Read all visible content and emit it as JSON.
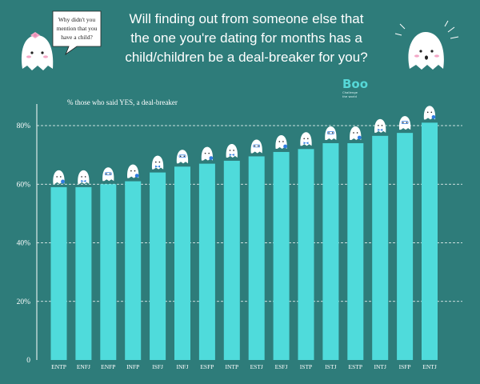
{
  "title_lines": [
    "Will finding out from someone else that",
    "the one you're dating for months has a",
    "child/children be a deal-breaker for you?"
  ],
  "speech_bubble_lines": [
    "Why didn't you",
    "mention that you",
    "have a child?"
  ],
  "brand": {
    "name": "Boo",
    "tagline_lines": [
      "Challenge",
      "the world"
    ]
  },
  "icons": {
    "mascot_left": "ghost-bow-icon",
    "mascot_right": "ghost-surprised-icon",
    "bar_mascot": "ghost-icon"
  },
  "colors": {
    "background": "#2e7c7a",
    "bar": "#4fdbdb",
    "gridline": "#ffffff",
    "ghost": "#ffffff",
    "accent": "#2f7de1",
    "bow": "#f4a7c6"
  },
  "chart_data": {
    "type": "bar",
    "subtitle": "% those who said YES, a deal-breaker",
    "categories": [
      "ENTP",
      "ENFJ",
      "ENFP",
      "INFP",
      "ISFJ",
      "INFJ",
      "ESFP",
      "INTP",
      "ESTJ",
      "ESFJ",
      "ISTP",
      "ISTJ",
      "ESTP",
      "INTJ",
      "ISFP",
      "ENTJ"
    ],
    "values": [
      59,
      59,
      60,
      61,
      64,
      66,
      67,
      68,
      69.5,
      71,
      72,
      74,
      74,
      76.5,
      77.5,
      81
    ],
    "y_ticks": [
      0,
      20,
      40,
      60,
      80
    ],
    "y_tick_labels": [
      "0",
      "20%",
      "40%",
      "60%",
      "80%"
    ],
    "ylim": [
      0,
      85
    ],
    "grid": true
  }
}
